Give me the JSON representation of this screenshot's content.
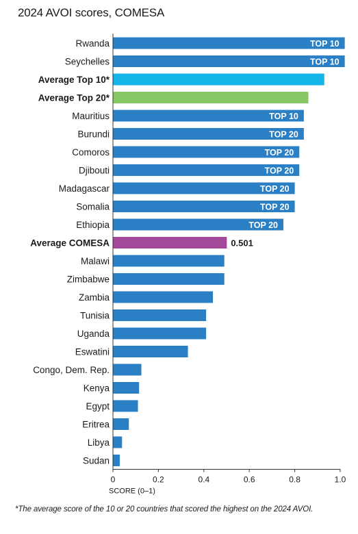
{
  "title": "2024 AVOI scores, COMESA",
  "footnote": "*The average score of the 10 or 20 countries that scored the highest on the 2024 AVOI.",
  "colors": {
    "country": "#2b80c5",
    "average_top10": "#14b6ea",
    "average_top20": "#88c765",
    "average_comesa": "#a4489a",
    "axis": "#333333"
  },
  "chart_data": {
    "type": "bar",
    "orientation": "horizontal",
    "xlabel": "SCORE (0–1)",
    "xlim": [
      0,
      1.0
    ],
    "xticks": [
      "0",
      "0.2",
      "0.4",
      "0.6",
      "0.8",
      "1.0"
    ],
    "grid": false,
    "bars": [
      {
        "label": "Rwanda",
        "value": 1.02,
        "tag": "TOP 10",
        "kind": "country",
        "bold": false
      },
      {
        "label": "Seychelles",
        "value": 1.02,
        "tag": "TOP 10",
        "kind": "country",
        "bold": false
      },
      {
        "label": "Average Top 10*",
        "value": 0.93,
        "tag": "",
        "kind": "average_top10",
        "bold": true
      },
      {
        "label": "Average Top 20*",
        "value": 0.86,
        "tag": "",
        "kind": "average_top20",
        "bold": true
      },
      {
        "label": "Mauritius",
        "value": 0.84,
        "tag": "TOP 10",
        "kind": "country",
        "bold": false
      },
      {
        "label": "Burundi",
        "value": 0.84,
        "tag": "TOP 20",
        "kind": "country",
        "bold": false
      },
      {
        "label": "Comoros",
        "value": 0.82,
        "tag": "TOP 20",
        "kind": "country",
        "bold": false
      },
      {
        "label": "Djibouti",
        "value": 0.82,
        "tag": "TOP 20",
        "kind": "country",
        "bold": false
      },
      {
        "label": "Madagascar",
        "value": 0.8,
        "tag": "TOP 20",
        "kind": "country",
        "bold": false
      },
      {
        "label": "Somalia",
        "value": 0.8,
        "tag": "TOP 20",
        "kind": "country",
        "bold": false
      },
      {
        "label": "Ethiopia",
        "value": 0.75,
        "tag": "TOP 20",
        "kind": "country",
        "bold": false
      },
      {
        "label": "Average COMESA",
        "value": 0.501,
        "tag": "",
        "value_label": "0.501",
        "kind": "average_comesa",
        "bold": true
      },
      {
        "label": "Malawi",
        "value": 0.49,
        "tag": "",
        "kind": "country",
        "bold": false
      },
      {
        "label": "Zimbabwe",
        "value": 0.49,
        "tag": "",
        "kind": "country",
        "bold": false
      },
      {
        "label": "Zambia",
        "value": 0.44,
        "tag": "",
        "kind": "country",
        "bold": false
      },
      {
        "label": "Tunisia",
        "value": 0.41,
        "tag": "",
        "kind": "country",
        "bold": false
      },
      {
        "label": "Uganda",
        "value": 0.41,
        "tag": "",
        "kind": "country",
        "bold": false
      },
      {
        "label": "Eswatini",
        "value": 0.33,
        "tag": "",
        "kind": "country",
        "bold": false
      },
      {
        "label": "Congo, Dem. Rep.",
        "value": 0.125,
        "tag": "",
        "kind": "country",
        "bold": false
      },
      {
        "label": "Kenya",
        "value": 0.115,
        "tag": "",
        "kind": "country",
        "bold": false
      },
      {
        "label": "Egypt",
        "value": 0.11,
        "tag": "",
        "kind": "country",
        "bold": false
      },
      {
        "label": "Eritrea",
        "value": 0.07,
        "tag": "",
        "kind": "country",
        "bold": false
      },
      {
        "label": "Libya",
        "value": 0.04,
        "tag": "",
        "kind": "country",
        "bold": false
      },
      {
        "label": "Sudan",
        "value": 0.03,
        "tag": "",
        "kind": "country",
        "bold": false
      }
    ]
  }
}
